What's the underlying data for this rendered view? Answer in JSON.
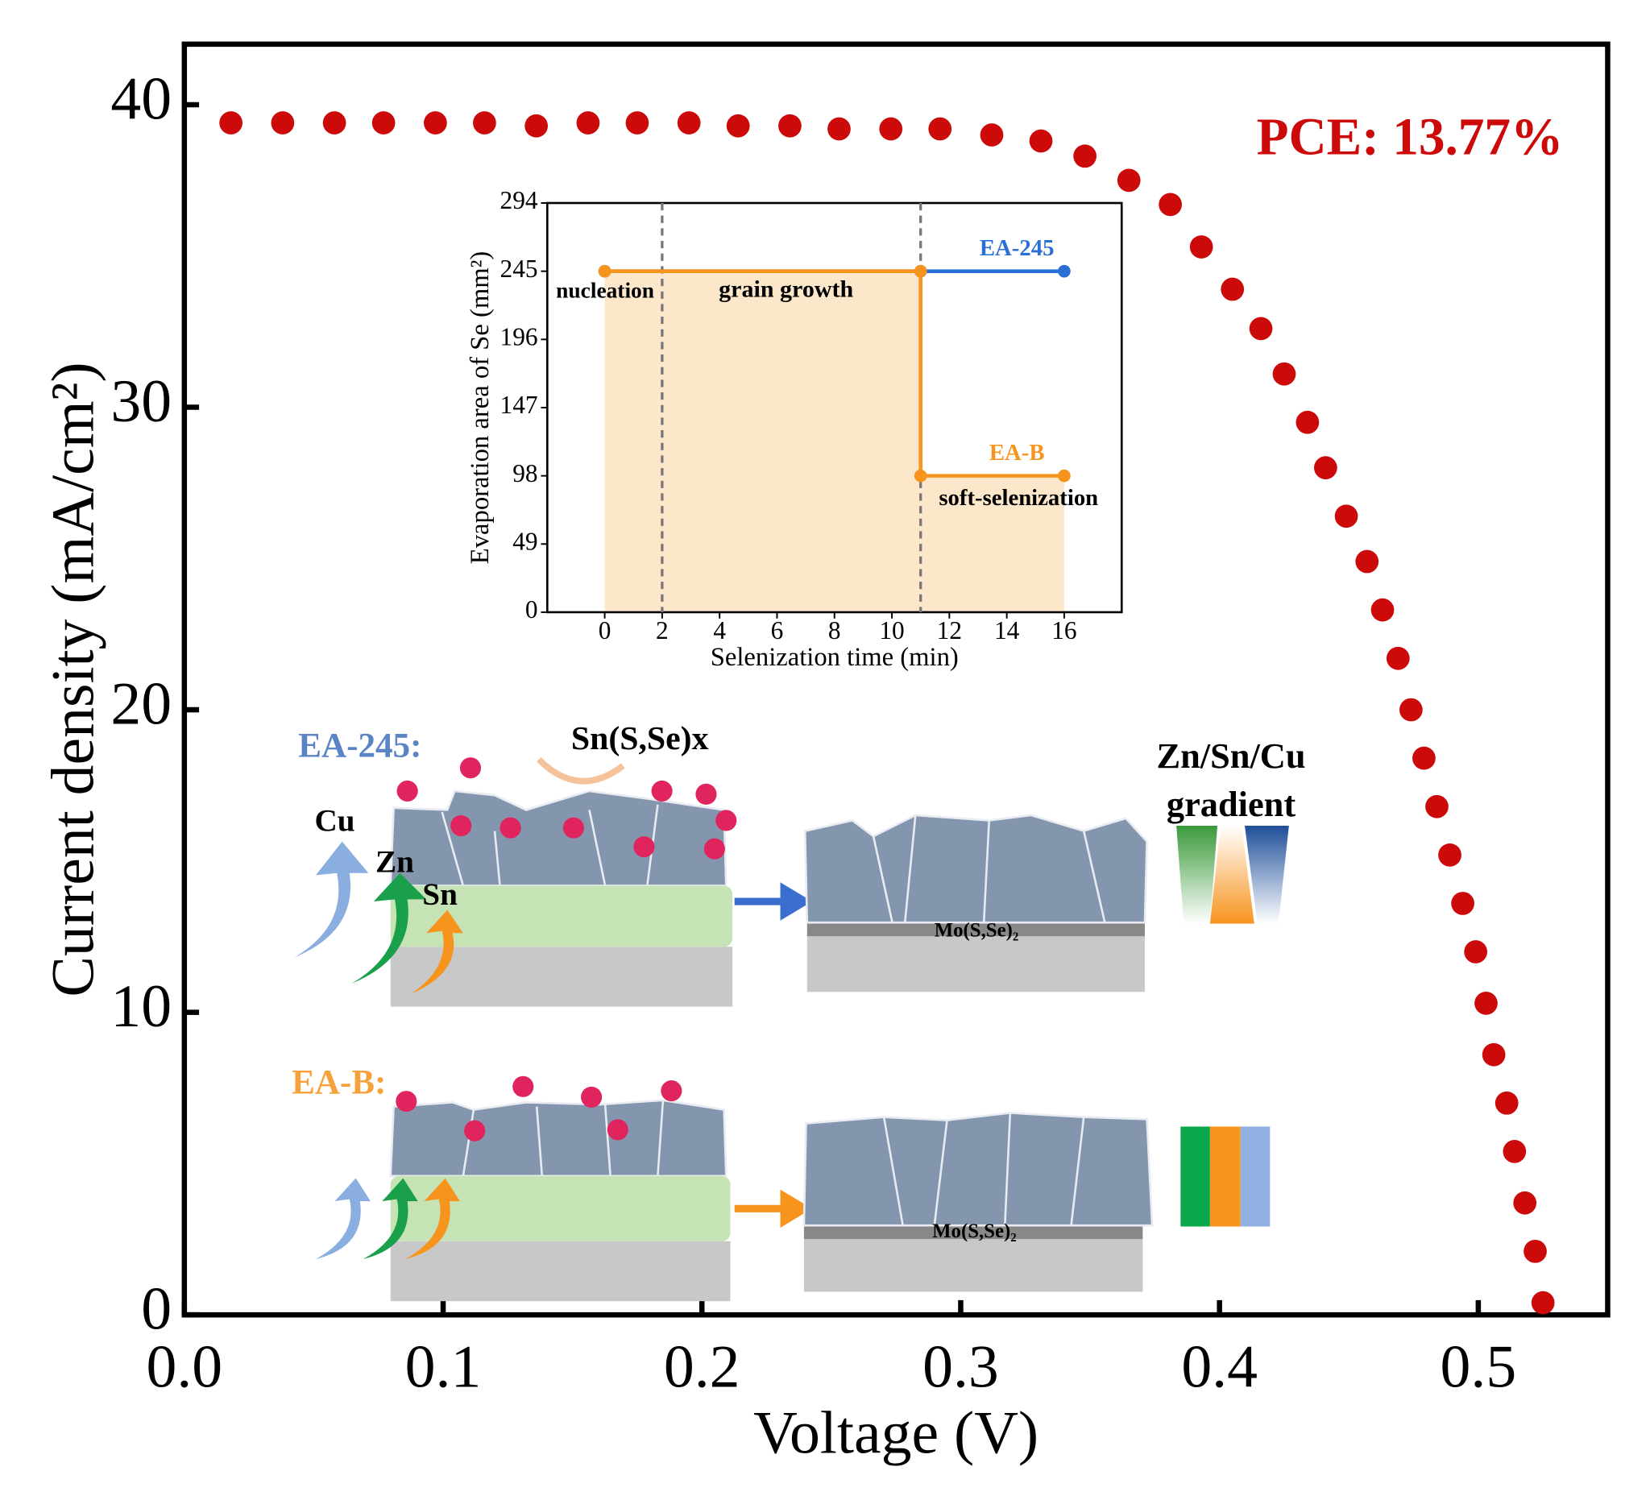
{
  "chart_data": [
    {
      "type": "scatter",
      "x_label": "Voltage (V)",
      "y_label": "Current density (mA/cm²)",
      "color": "#cc0a0a",
      "annotation": "PCE: 13.77%",
      "xlim": [
        0,
        0.55
      ],
      "ylim": [
        0,
        42
      ],
      "xticks": [
        {
          "value": 0,
          "label": "0.0"
        },
        0.1,
        0.2,
        0.3,
        0.4,
        0.5
      ],
      "yticks": [
        0,
        10,
        20,
        30,
        40
      ],
      "x": [
        0.018,
        0.038,
        0.058,
        0.077,
        0.097,
        0.116,
        0.136,
        0.156,
        0.175,
        0.195,
        0.214,
        0.234,
        0.253,
        0.273,
        0.292,
        0.312,
        0.331,
        0.348,
        0.365,
        0.381,
        0.393,
        0.405,
        0.416,
        0.425,
        0.434,
        0.441,
        0.449,
        0.457,
        0.463,
        0.469,
        0.474,
        0.479,
        0.484,
        0.489,
        0.494,
        0.499,
        0.503,
        0.506,
        0.511,
        0.514,
        0.518,
        0.522,
        0.525
      ],
      "values": [
        39.4,
        39.4,
        39.4,
        39.4,
        39.4,
        39.4,
        39.3,
        39.4,
        39.4,
        39.4,
        39.3,
        39.3,
        39.2,
        39.2,
        39.2,
        39.0,
        38.8,
        38.3,
        37.5,
        36.7,
        35.3,
        33.9,
        32.6,
        31.1,
        29.5,
        28.0,
        26.4,
        24.9,
        23.3,
        21.7,
        20.0,
        18.4,
        16.8,
        15.2,
        13.6,
        12.0,
        10.3,
        8.6,
        7.0,
        5.4,
        3.7,
        2.1,
        0.4
      ]
    },
    {
      "type": "line",
      "x_label": "Selenization time (min)",
      "y_label": "Evaporation area of Se (mm²)",
      "xlim": [
        -2,
        18
      ],
      "ylim": [
        0,
        294
      ],
      "xticks": [
        0,
        2,
        4,
        6,
        8,
        10,
        12,
        14,
        16
      ],
      "yticks": [
        0,
        49,
        98,
        147,
        196,
        245,
        294
      ],
      "vlines": [
        2,
        11
      ],
      "fill_color": "#fde3c1",
      "annotations": [
        "nucleation",
        "grain growth",
        "soft-selenization"
      ],
      "series": [
        {
          "name": "EA-245",
          "color": "#2a6fd6",
          "x": [
            0,
            11,
            16
          ],
          "values": [
            245,
            245,
            245
          ]
        },
        {
          "name": "EA-B",
          "color": "#f7941d",
          "x": [
            0,
            11,
            11,
            16
          ],
          "values": [
            245,
            245,
            98,
            98
          ]
        }
      ]
    }
  ],
  "schematic": {
    "ea245": "EA-245:",
    "eab": "EA-B:",
    "sn_phase": "Sn(S,Se)x",
    "cu": "Cu",
    "zn": "Zn",
    "sn": "Sn",
    "gradient": [
      "Zn/Sn/Cu",
      "gradient"
    ],
    "mo1": "Mo(S,Se)₂",
    "mo2": "Mo(S,Se)₂"
  }
}
